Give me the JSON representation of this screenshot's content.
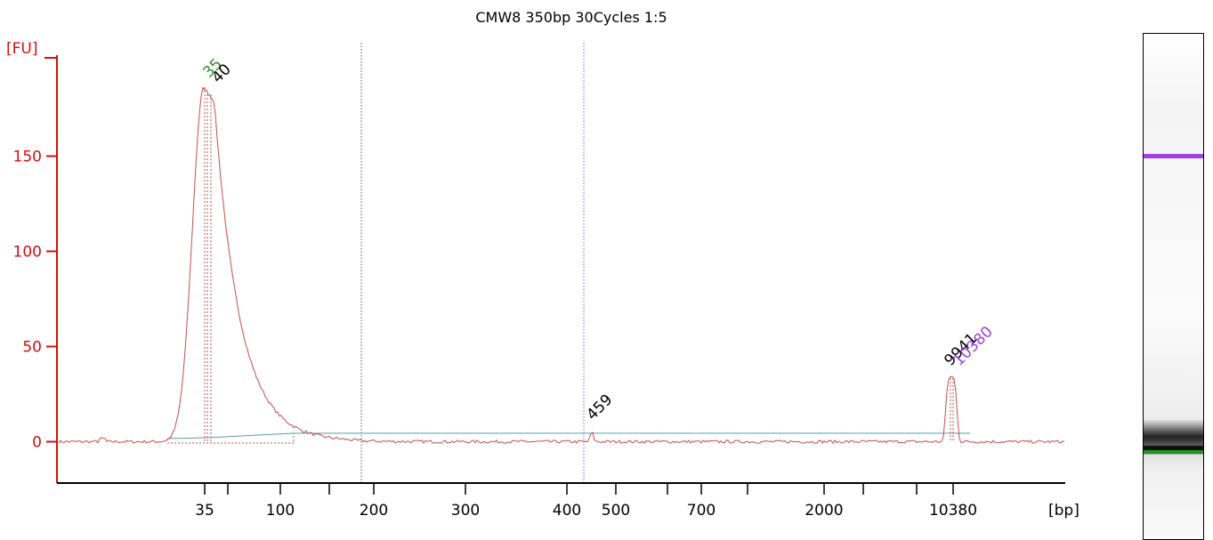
{
  "chart_data": {
    "type": "line",
    "title": "CMW8 350bp 30Cycles 1:5",
    "ylabel": "[FU]",
    "xlabel": "[bp]",
    "ylim": [
      -20,
      195
    ],
    "yticks": [
      0,
      50,
      100,
      150
    ],
    "xtick_labels": [
      "35",
      "100",
      "200",
      "300",
      "400",
      "500",
      "700",
      "2000",
      "10380"
    ],
    "grid": false,
    "series": [
      {
        "color": "#c0504d",
        "points": [
          [
            35,
            186
          ],
          [
            40,
            180
          ],
          [
            100,
            4
          ],
          [
            200,
            1
          ],
          [
            459,
            5
          ],
          [
            9941,
            34
          ],
          [
            10380,
            34
          ]
        ]
      }
    ],
    "peak_labels": [
      {
        "label": "35",
        "x": 35,
        "y": 186,
        "color": "#2e8b2e"
      },
      {
        "label": "40",
        "x": 40,
        "y": 180,
        "color": "#000000"
      },
      {
        "label": "459",
        "x": 459,
        "y": 5,
        "color": "#000000"
      },
      {
        "label": "9941",
        "x": 9941,
        "y": 34,
        "color": "#000000"
      },
      {
        "label": "10380",
        "x": 10380,
        "y": 34,
        "color": "#9a40e0"
      }
    ],
    "region_markers": [
      200,
      459
    ],
    "gel_lane": {
      "bands": [
        {
          "label": "upper-marker",
          "color": "#a040f0"
        },
        {
          "label": "sample",
          "color": "#111111"
        },
        {
          "label": "lower-marker",
          "color": "#1a9a1a"
        }
      ]
    }
  }
}
